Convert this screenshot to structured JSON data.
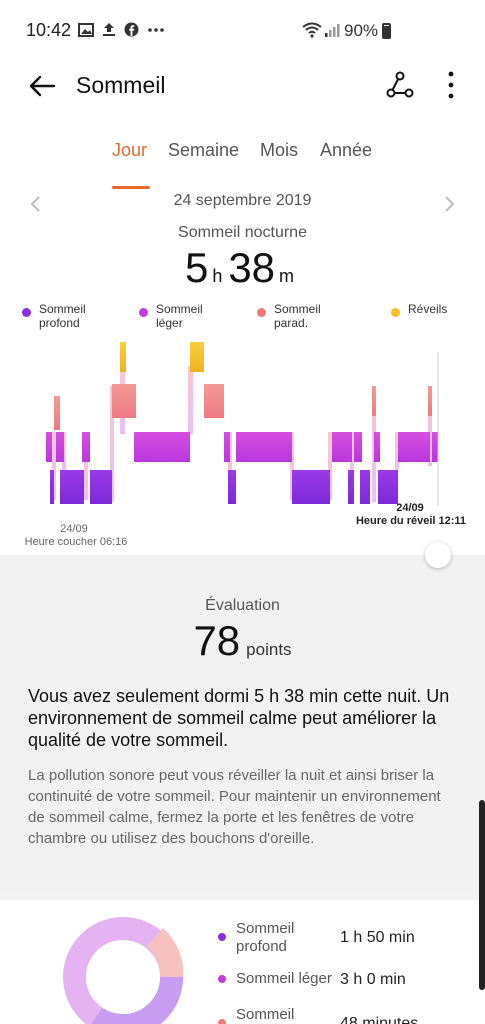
{
  "status_bar": {
    "time": "10:42",
    "battery": "90%",
    "icons": [
      "image-icon",
      "upload-icon",
      "facebook-icon",
      "more-dots-icon",
      "wifi-icon",
      "signal-icon",
      "battery-icon"
    ]
  },
  "app_bar": {
    "title": "Sommeil"
  },
  "tabs": [
    {
      "label": "Jour",
      "active": true
    },
    {
      "label": "Semaine",
      "active": false
    },
    {
      "label": "Mois",
      "active": false
    },
    {
      "label": "Année",
      "active": false
    }
  ],
  "date": "24 septembre 2019",
  "night": {
    "label": "Sommeil nocturne",
    "hours": "5",
    "hours_unit": "h",
    "minutes": "38",
    "minutes_unit": "m"
  },
  "legend": [
    {
      "label": "Sommeil profond",
      "color": "#8a2fe3"
    },
    {
      "label": "Sommeil léger",
      "color": "#c23be0"
    },
    {
      "label": "Sommeil parad.",
      "color": "#f07a7a"
    },
    {
      "label": "Réveils",
      "color": "#f4c12a"
    }
  ],
  "chart_labels": {
    "start_date": "24/09",
    "start_text": "Heure coucher 06:16",
    "end_date": "24/09",
    "end_text": "Heure du réveil 12:11"
  },
  "evaluation": {
    "title": "Évaluation",
    "score": "78",
    "unit": "points",
    "summary": "Vous avez seulement dormi 5 h 38 min cette nuit. Un environnement de sommeil calme peut améliorer la qualité de votre sommeil.",
    "detail": "La pollution sonore peut vous réveiller la nuit et ainsi briser la continuité de votre sommeil. Pour maintenir un environnement de sommeil calme, fermez la porte et les fenêtres de votre chambre ou utilisez des bouchons d'oreille."
  },
  "stats": [
    {
      "label": "Sommeil profond",
      "value": "1 h 50 min",
      "color": "#8a2fe3"
    },
    {
      "label": "Sommeil léger",
      "value": "3 h 0 min",
      "color": "#c23be0"
    },
    {
      "label": "Sommeil",
      "value": "48 minutes",
      "color": "#f07a7a"
    }
  ]
}
